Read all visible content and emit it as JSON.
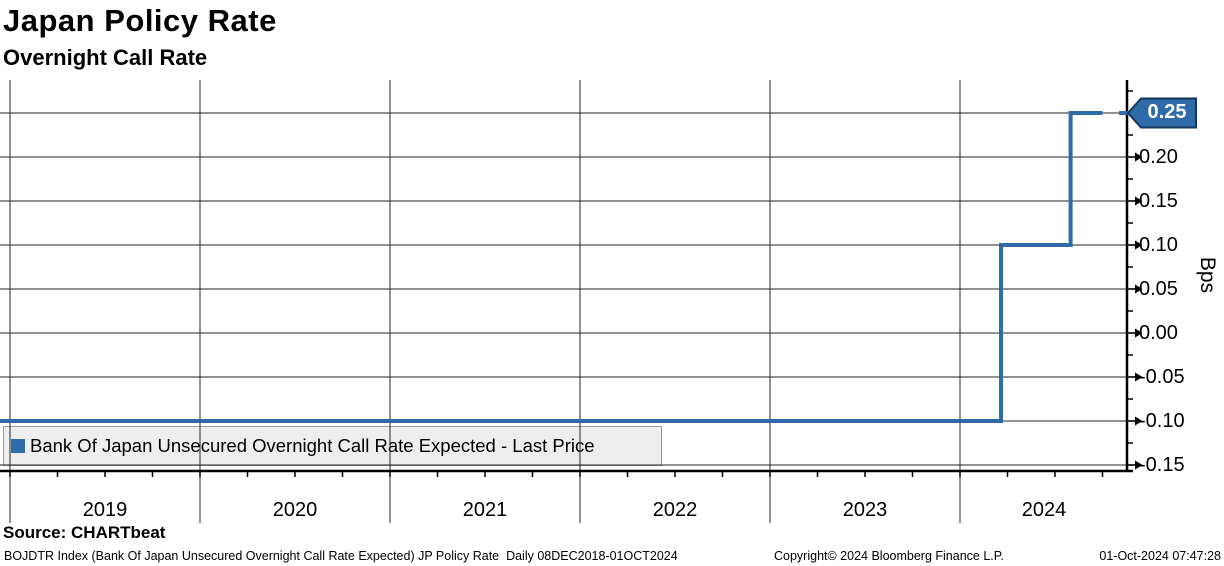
{
  "header": {
    "title": "Japan Policy Rate",
    "subtitle": "Overnight Call Rate"
  },
  "chart_data": {
    "type": "line",
    "line_style": "step",
    "title": "Japan Policy Rate",
    "subtitle": "Overnight Call Rate",
    "ylabel": "Bps",
    "ylim": [
      -0.1557,
      0.2875
    ],
    "yticks": [
      0.25,
      0.2,
      0.15,
      0.1,
      0.05,
      0.0,
      -0.05,
      -0.1,
      -0.15
    ],
    "y_minor_step": 0.025,
    "x_years": [
      2019,
      2020,
      2021,
      2022,
      2023,
      2024
    ],
    "x_minor": "quarterly",
    "x_start": "08DEC2018",
    "x_end": "01OCT2024",
    "grid": true,
    "legend_position": "bottom-left-inside",
    "series": [
      {
        "name": "Bank Of Japan Unsecured Overnight Call Rate Expected - Last Price",
        "color": "#2e6ba8",
        "last_price": "0.25",
        "step_points": [
          {
            "date": "2018-12-08",
            "value": -0.1
          },
          {
            "date": "2024-03-19",
            "value": 0.1
          },
          {
            "date": "2024-07-31",
            "value": 0.25
          },
          {
            "date": "2024-10-01",
            "value": 0.25
          }
        ]
      }
    ]
  },
  "legend": {
    "items": [
      {
        "label": "Bank Of Japan Unsecured Overnight Call Rate Expected - Last Price",
        "color": "#2e6ba8"
      }
    ]
  },
  "footer": {
    "source": "Source: CHARTbeat",
    "description": "BOJDTR Index (Bank Of Japan Unsecured Overnight Call Rate Expected) JP Policy Rate  Daily 08DEC2018-01OCT2024",
    "copyright": "Copyright© 2024 Bloomberg Finance L.P.",
    "timestamp": "01-Oct-2024 07:47:28"
  },
  "colors": {
    "line": "#2e6ba8",
    "badge_fill": "#2e6ba8",
    "badge_border": "#16365c",
    "grid": "#262626",
    "axis": "#000000",
    "legend_bg": "#eeeeee"
  }
}
